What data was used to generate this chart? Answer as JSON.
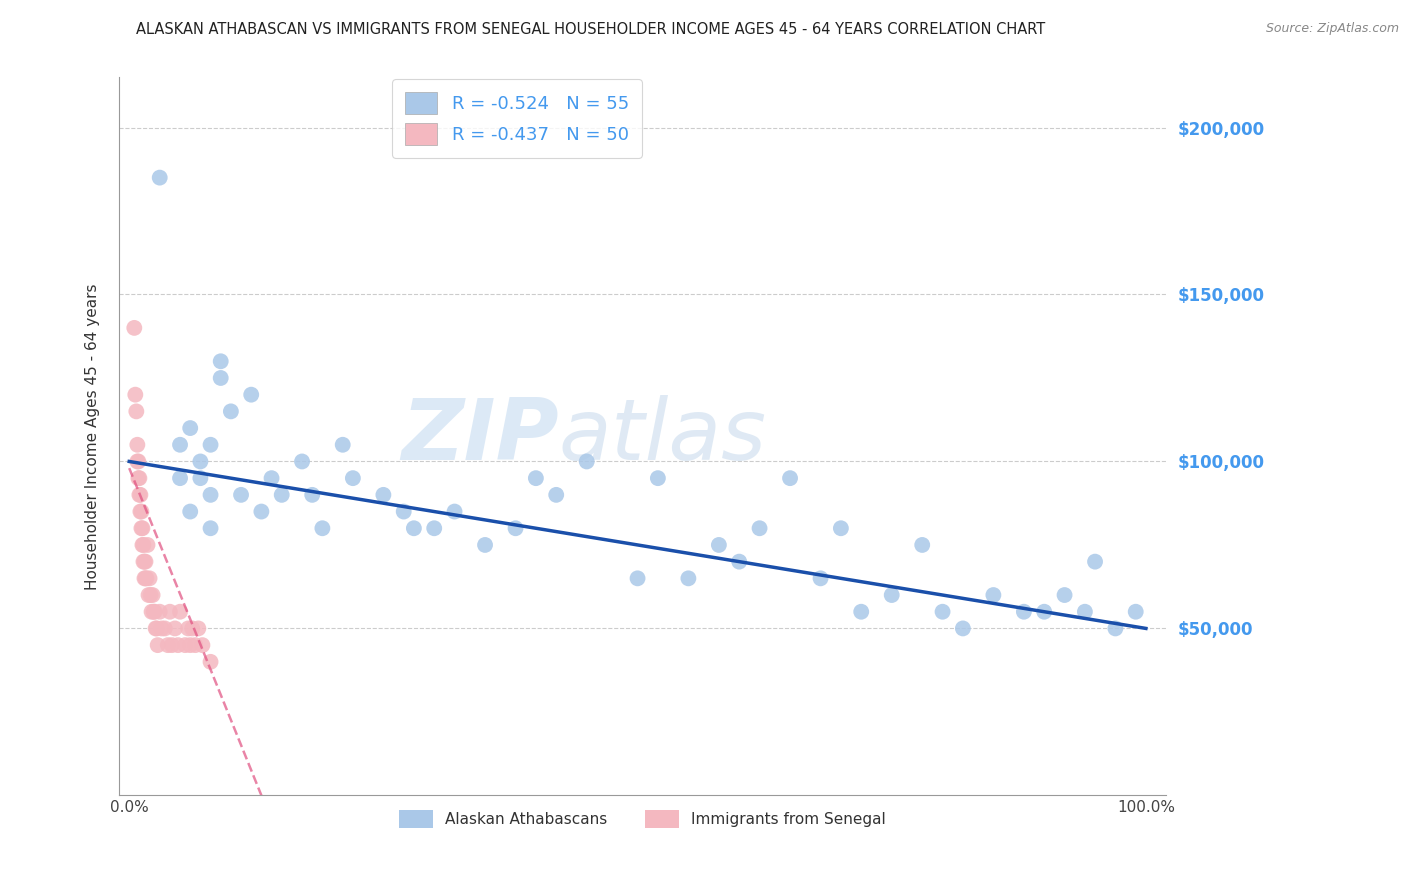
{
  "title": "ALASKAN ATHABASCAN VS IMMIGRANTS FROM SENEGAL HOUSEHOLDER INCOME AGES 45 - 64 YEARS CORRELATION CHART",
  "source": "Source: ZipAtlas.com",
  "ylabel": "Householder Income Ages 45 - 64 years",
  "y_tick_labels": [
    "$50,000",
    "$100,000",
    "$150,000",
    "$200,000"
  ],
  "y_tick_values": [
    50000,
    100000,
    150000,
    200000
  ],
  "legend_blue_r": "R = -0.524",
  "legend_blue_n": "N = 55",
  "legend_pink_r": "R = -0.437",
  "legend_pink_n": "N = 50",
  "legend_blue_label": "Alaskan Athabascans",
  "legend_pink_label": "Immigrants from Senegal",
  "blue_color": "#aac8e8",
  "blue_line_color": "#1a4faa",
  "pink_color": "#f4b8c0",
  "pink_line_color": "#e05080",
  "right_axis_color": "#4499ee",
  "watermark_zip": "ZIP",
  "watermark_atlas": "atlas",
  "blue_scatter_x": [
    0.03,
    0.05,
    0.05,
    0.06,
    0.06,
    0.07,
    0.07,
    0.08,
    0.08,
    0.08,
    0.09,
    0.09,
    0.1,
    0.11,
    0.12,
    0.13,
    0.14,
    0.15,
    0.17,
    0.18,
    0.19,
    0.21,
    0.22,
    0.25,
    0.27,
    0.28,
    0.3,
    0.32,
    0.35,
    0.38,
    0.4,
    0.42,
    0.45,
    0.5,
    0.52,
    0.55,
    0.58,
    0.6,
    0.62,
    0.65,
    0.68,
    0.7,
    0.72,
    0.75,
    0.78,
    0.8,
    0.82,
    0.85,
    0.88,
    0.9,
    0.92,
    0.94,
    0.95,
    0.97,
    0.99
  ],
  "blue_scatter_y": [
    185000,
    105000,
    95000,
    110000,
    85000,
    100000,
    95000,
    105000,
    90000,
    80000,
    130000,
    125000,
    115000,
    90000,
    120000,
    85000,
    95000,
    90000,
    100000,
    90000,
    80000,
    105000,
    95000,
    90000,
    85000,
    80000,
    80000,
    85000,
    75000,
    80000,
    95000,
    90000,
    100000,
    65000,
    95000,
    65000,
    75000,
    70000,
    80000,
    95000,
    65000,
    80000,
    55000,
    60000,
    75000,
    55000,
    50000,
    60000,
    55000,
    55000,
    60000,
    55000,
    70000,
    50000,
    55000
  ],
  "pink_scatter_x": [
    0.005,
    0.006,
    0.007,
    0.008,
    0.008,
    0.009,
    0.009,
    0.01,
    0.01,
    0.011,
    0.011,
    0.012,
    0.012,
    0.013,
    0.013,
    0.014,
    0.014,
    0.015,
    0.015,
    0.016,
    0.016,
    0.017,
    0.018,
    0.019,
    0.02,
    0.021,
    0.022,
    0.023,
    0.024,
    0.025,
    0.026,
    0.027,
    0.028,
    0.03,
    0.032,
    0.035,
    0.038,
    0.04,
    0.042,
    0.045,
    0.048,
    0.05,
    0.055,
    0.058,
    0.06,
    0.062,
    0.065,
    0.068,
    0.072,
    0.08
  ],
  "pink_scatter_y": [
    140000,
    120000,
    115000,
    105000,
    100000,
    100000,
    95000,
    95000,
    90000,
    90000,
    85000,
    85000,
    80000,
    80000,
    75000,
    75000,
    70000,
    70000,
    65000,
    70000,
    65000,
    65000,
    75000,
    60000,
    65000,
    60000,
    55000,
    60000,
    55000,
    55000,
    50000,
    50000,
    45000,
    55000,
    50000,
    50000,
    45000,
    55000,
    45000,
    50000,
    45000,
    55000,
    45000,
    50000,
    45000,
    50000,
    45000,
    50000,
    45000,
    40000
  ],
  "blue_line_x0": 0.0,
  "blue_line_y0": 100000,
  "blue_line_x1": 1.0,
  "blue_line_y1": 50000,
  "pink_line_x0": 0.0,
  "pink_line_y0": 98000,
  "pink_line_x1": 0.13,
  "pink_line_y1": 0,
  "ylim": [
    0,
    215000
  ],
  "xlim": [
    -0.01,
    1.02
  ]
}
